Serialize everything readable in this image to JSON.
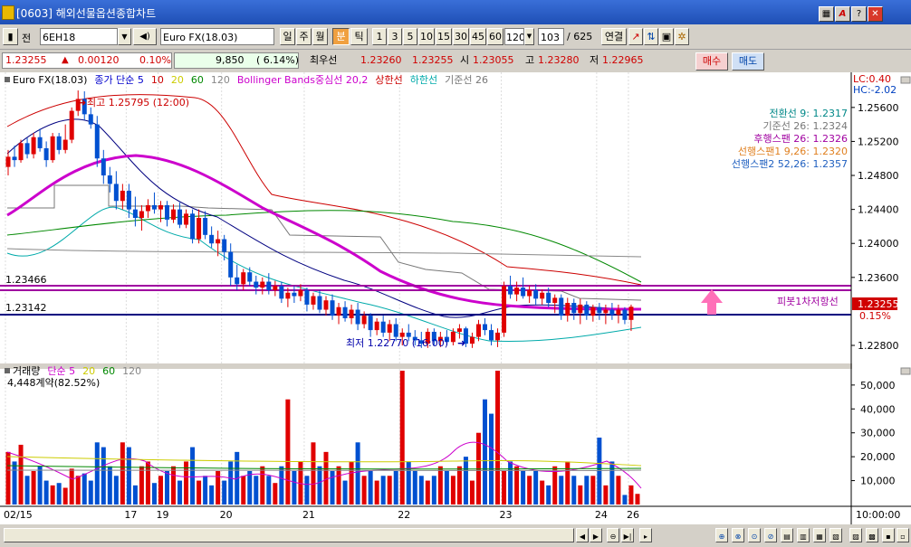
{
  "window": {
    "title": "[0603] 해외선물옵션종합차트",
    "buttons": [
      "▦",
      "A",
      "?",
      "✕"
    ]
  },
  "toolbar": {
    "code": "6EH18",
    "product": "Euro FX(18.03)",
    "period_tabs": [
      "일",
      "주",
      "월",
      "분",
      "틱"
    ],
    "selected_period": "분",
    "intervals": [
      "1",
      "3",
      "5",
      "10",
      "15",
      "30",
      "45",
      "60"
    ],
    "interval_value": "120",
    "count_value": "103",
    "count_total": "/ 625",
    "connect_label": "연결",
    "jeon": "전"
  },
  "quote": {
    "price": "1.23255",
    "change_arrow": "▲",
    "change": "0.00120",
    "change_pct": "0.10%",
    "volume": "9,850",
    "volume_pct": "( 6.14%)",
    "best_label": "최우선",
    "ask": "1.23260",
    "bid": "1.23255",
    "open_label": "시",
    "open": "1.23055",
    "high_label": "고",
    "high": "1.23280",
    "low_label": "저",
    "low": "1.22965",
    "buy_label": "매수",
    "sell_label": "매도"
  },
  "main_chart": {
    "legend": [
      {
        "text": "Euro FX(18.03)",
        "color": "#000000"
      },
      {
        "text": "종가 단순 5",
        "color": "#0000cc"
      },
      {
        "text": "10",
        "color": "#cc0000"
      },
      {
        "text": "20",
        "color": "#cccc00"
      },
      {
        "text": "60",
        "color": "#008800"
      },
      {
        "text": "120",
        "color": "#888888"
      },
      {
        "text": "Bollinger Bands중심선 20,2",
        "color": "#cc00cc"
      },
      {
        "text": "상한선",
        "color": "#cc0000"
      },
      {
        "text": "하한선",
        "color": "#00aaaa"
      },
      {
        "text": "기준선 26",
        "color": "#777777"
      }
    ],
    "lc": "LC:0.40",
    "hc": "HC:-2.02",
    "ichimoku": [
      {
        "text": "전환선 9: 1.2317",
        "color": "#008888"
      },
      {
        "text": "기준선 26: 1.2324",
        "color": "#777777"
      },
      {
        "text": "후행스팬 26: 1.2326",
        "color": "#a000a0"
      },
      {
        "text": "선행스팬1 9,26: 1.2320",
        "color": "#e08020"
      },
      {
        "text": "선행스팬2 52,26: 1.2357",
        "color": "#2060c0"
      }
    ],
    "high_mark": "최고 1.25795 (12:00)",
    "low_mark": "최저 1.22770 (16:00)",
    "level_upper": "1.23466",
    "level_lower": "1.23142",
    "pivot_label": "피봇1차저항선",
    "last_price": "1.23255",
    "last_pct": "0.15%",
    "y_ticks": [
      "1.25600",
      "1.25200",
      "1.24800",
      "1.24400",
      "1.24000",
      "1.23600",
      "1.22800"
    ],
    "y_range": [
      1.2263,
      1.2596
    ],
    "levels": [
      1.23466,
      1.23142
    ]
  },
  "volume_chart": {
    "legend": [
      {
        "text": "거래량",
        "color": "#000000"
      },
      {
        "text": "단순 5",
        "color": "#cc00cc"
      },
      {
        "text": "20",
        "color": "#cccc00"
      },
      {
        "text": "60",
        "color": "#008800"
      },
      {
        "text": "120",
        "color": "#888888"
      }
    ],
    "info": "4,448계약(82.52%)",
    "y_ticks": [
      "50,000",
      "40,000",
      "30,000",
      "20,000",
      "10,000"
    ],
    "y_max": 56000
  },
  "x_axis": {
    "labels": [
      {
        "text": "02/15",
        "i": 0
      },
      {
        "text": "17",
        "i": 19
      },
      {
        "text": "19",
        "i": 24
      },
      {
        "text": "20",
        "i": 34
      },
      {
        "text": "21",
        "i": 47
      },
      {
        "text": "22",
        "i": 62
      },
      {
        "text": "23",
        "i": 78
      },
      {
        "text": "24",
        "i": 93
      },
      {
        "text": "26",
        "i": 98
      }
    ],
    "time": "10:00:00"
  },
  "chart_data": {
    "type": "candlestick",
    "candles": [
      [
        1.249,
        1.251,
        1.248,
        1.2502
      ],
      [
        1.2502,
        1.2515,
        1.249,
        1.2498
      ],
      [
        1.2498,
        1.2522,
        1.2495,
        1.2518
      ],
      [
        1.2518,
        1.2524,
        1.25,
        1.2505
      ],
      [
        1.2505,
        1.253,
        1.25,
        1.2525
      ],
      [
        1.2525,
        1.2535,
        1.2508,
        1.2512
      ],
      [
        1.2512,
        1.252,
        1.249,
        1.2498
      ],
      [
        1.2498,
        1.253,
        1.2495,
        1.2526
      ],
      [
        1.2526,
        1.253,
        1.2505,
        1.251
      ],
      [
        1.251,
        1.254,
        1.2506,
        1.2522
      ],
      [
        1.2522,
        1.256,
        1.2518,
        1.2556
      ],
      [
        1.2556,
        1.258,
        1.255,
        1.257
      ],
      [
        1.257,
        1.2579,
        1.2545,
        1.2552
      ],
      [
        1.2552,
        1.256,
        1.2535,
        1.254
      ],
      [
        1.254,
        1.255,
        1.249,
        1.25
      ],
      [
        1.25,
        1.251,
        1.247,
        1.248
      ],
      [
        1.248,
        1.249,
        1.246,
        1.247
      ],
      [
        1.247,
        1.2485,
        1.244,
        1.245
      ],
      [
        1.245,
        1.247,
        1.244,
        1.2462
      ],
      [
        1.2462,
        1.247,
        1.243,
        1.244
      ],
      [
        1.244,
        1.2455,
        1.242,
        1.243
      ],
      [
        1.243,
        1.2445,
        1.2415,
        1.2438
      ],
      [
        1.2438,
        1.2452,
        1.243,
        1.2445
      ],
      [
        1.2445,
        1.246,
        1.2435,
        1.244
      ],
      [
        1.244,
        1.245,
        1.2425,
        1.2445
      ],
      [
        1.2445,
        1.245,
        1.242,
        1.2428
      ],
      [
        1.2428,
        1.2446,
        1.2424,
        1.244
      ],
      [
        1.244,
        1.2448,
        1.2418,
        1.2422
      ],
      [
        1.2422,
        1.244,
        1.2418,
        1.2435
      ],
      [
        1.2435,
        1.244,
        1.24,
        1.2405
      ],
      [
        1.2405,
        1.244,
        1.24,
        1.243
      ],
      [
        1.243,
        1.2438,
        1.2405,
        1.241
      ],
      [
        1.241,
        1.242,
        1.2395,
        1.24
      ],
      [
        1.24,
        1.2415,
        1.2385,
        1.2405
      ],
      [
        1.2405,
        1.241,
        1.238,
        1.239
      ],
      [
        1.239,
        1.24,
        1.235,
        1.236
      ],
      [
        1.236,
        1.2375,
        1.2345,
        1.2352
      ],
      [
        1.2352,
        1.237,
        1.2345,
        1.2366
      ],
      [
        1.2366,
        1.2372,
        1.235,
        1.2355
      ],
      [
        1.2355,
        1.2362,
        1.234,
        1.2348
      ],
      [
        1.2348,
        1.236,
        1.234,
        1.2355
      ],
      [
        1.2355,
        1.2365,
        1.234,
        1.2345
      ],
      [
        1.2345,
        1.2356,
        1.2338,
        1.235
      ],
      [
        1.235,
        1.2355,
        1.233,
        1.2335
      ],
      [
        1.2335,
        1.2348,
        1.2325,
        1.2342
      ],
      [
        1.2342,
        1.235,
        1.233,
        1.2338
      ],
      [
        1.2338,
        1.2352,
        1.2332,
        1.2345
      ],
      [
        1.2345,
        1.2348,
        1.232,
        1.2328
      ],
      [
        1.2328,
        1.2342,
        1.2322,
        1.2338
      ],
      [
        1.2338,
        1.2345,
        1.2318,
        1.2322
      ],
      [
        1.2322,
        1.2338,
        1.2315,
        1.2333
      ],
      [
        1.2333,
        1.234,
        1.231,
        1.2315
      ],
      [
        1.2315,
        1.233,
        1.2305,
        1.2325
      ],
      [
        1.2325,
        1.2332,
        1.2308,
        1.2312
      ],
      [
        1.2312,
        1.2328,
        1.2305,
        1.2322
      ],
      [
        1.2322,
        1.233,
        1.2298,
        1.2305
      ],
      [
        1.2305,
        1.232,
        1.23,
        1.2315
      ],
      [
        1.2315,
        1.2318,
        1.229,
        1.2298
      ],
      [
        1.2298,
        1.2312,
        1.2292,
        1.2308
      ],
      [
        1.2308,
        1.2315,
        1.229,
        1.2295
      ],
      [
        1.2295,
        1.231,
        1.2285,
        1.2305
      ],
      [
        1.2305,
        1.2312,
        1.2285,
        1.229
      ],
      [
        1.229,
        1.23,
        1.228,
        1.2295
      ],
      [
        1.2295,
        1.2305,
        1.2285,
        1.229
      ],
      [
        1.229,
        1.2298,
        1.228,
        1.2286
      ],
      [
        1.2286,
        1.2296,
        1.2277,
        1.2282
      ],
      [
        1.2282,
        1.23,
        1.2277,
        1.2296
      ],
      [
        1.2296,
        1.23,
        1.228,
        1.2285
      ],
      [
        1.2285,
        1.2296,
        1.2278,
        1.229
      ],
      [
        1.229,
        1.2298,
        1.228,
        1.2284
      ],
      [
        1.2284,
        1.23,
        1.228,
        1.2296
      ],
      [
        1.2296,
        1.2305,
        1.2288,
        1.23
      ],
      [
        1.23,
        1.2302,
        1.2278,
        1.2282
      ],
      [
        1.2282,
        1.2295,
        1.2277,
        1.229
      ],
      [
        1.229,
        1.231,
        1.2285,
        1.2305
      ],
      [
        1.2305,
        1.2312,
        1.2292,
        1.2298
      ],
      [
        1.2298,
        1.2305,
        1.228,
        1.2286
      ],
      [
        1.2286,
        1.23,
        1.2278,
        1.2295
      ],
      [
        1.2295,
        1.2355,
        1.229,
        1.235
      ],
      [
        1.235,
        1.2362,
        1.2335,
        1.234
      ],
      [
        1.234,
        1.2355,
        1.2332,
        1.2348
      ],
      [
        1.2348,
        1.236,
        1.2335,
        1.2338
      ],
      [
        1.2338,
        1.235,
        1.233,
        1.2345
      ],
      [
        1.2345,
        1.2352,
        1.2328,
        1.2335
      ],
      [
        1.2335,
        1.2346,
        1.2328,
        1.2342
      ],
      [
        1.2342,
        1.2348,
        1.2325,
        1.233
      ],
      [
        1.233,
        1.234,
        1.2318,
        1.2336
      ],
      [
        1.2336,
        1.234,
        1.231,
        1.2315
      ],
      [
        1.2315,
        1.2336,
        1.2308,
        1.233
      ],
      [
        1.233,
        1.2335,
        1.231,
        1.2318
      ],
      [
        1.2318,
        1.2335,
        1.2305,
        1.2328
      ],
      [
        1.2328,
        1.2332,
        1.231,
        1.2315
      ],
      [
        1.2315,
        1.2328,
        1.2308,
        1.2325
      ],
      [
        1.2325,
        1.233,
        1.231,
        1.2318
      ],
      [
        1.2318,
        1.2328,
        1.2305,
        1.2322
      ],
      [
        1.2322,
        1.233,
        1.231,
        1.2316
      ],
      [
        1.2316,
        1.2328,
        1.2306,
        1.2322
      ],
      [
        1.2322,
        1.2325,
        1.2305,
        1.231
      ],
      [
        1.231,
        1.2328,
        1.2297,
        1.23255
      ]
    ],
    "volumes": [
      22000,
      18000,
      25000,
      12000,
      14000,
      16000,
      10000,
      8000,
      9000,
      7000,
      15000,
      12000,
      13000,
      10000,
      26000,
      24000,
      16000,
      12000,
      26000,
      24000,
      8000,
      16000,
      18000,
      9000,
      12000,
      14000,
      16000,
      10000,
      18000,
      24000,
      10000,
      12000,
      8000,
      14000,
      10000,
      18000,
      22000,
      12000,
      14000,
      12000,
      16000,
      12000,
      9000,
      16000,
      44000,
      14000,
      18000,
      12000,
      26000,
      16000,
      22000,
      14000,
      16000,
      10000,
      18000,
      26000,
      12000,
      14000,
      10000,
      12000,
      12000,
      14000,
      56000,
      18000,
      14000,
      12000,
      10000,
      12000,
      16000,
      14000,
      12000,
      16000,
      20000,
      10000,
      30000,
      44000,
      38000,
      56000,
      14000,
      18000,
      16000,
      14000,
      12000,
      14000,
      10000,
      8000,
      16000,
      12000,
      18000,
      12000,
      8000,
      12000,
      12000,
      28000,
      8000,
      18000,
      12000,
      4000,
      8000,
      4448
    ],
    "x_labels": [
      "02/15",
      "17",
      "19",
      "20",
      "21",
      "22",
      "23",
      "24",
      "26"
    ],
    "price_ylim": [
      1.2263,
      1.2596
    ],
    "volume_ylim": [
      0,
      56000
    ],
    "title": "Euro FX(18.03)"
  }
}
